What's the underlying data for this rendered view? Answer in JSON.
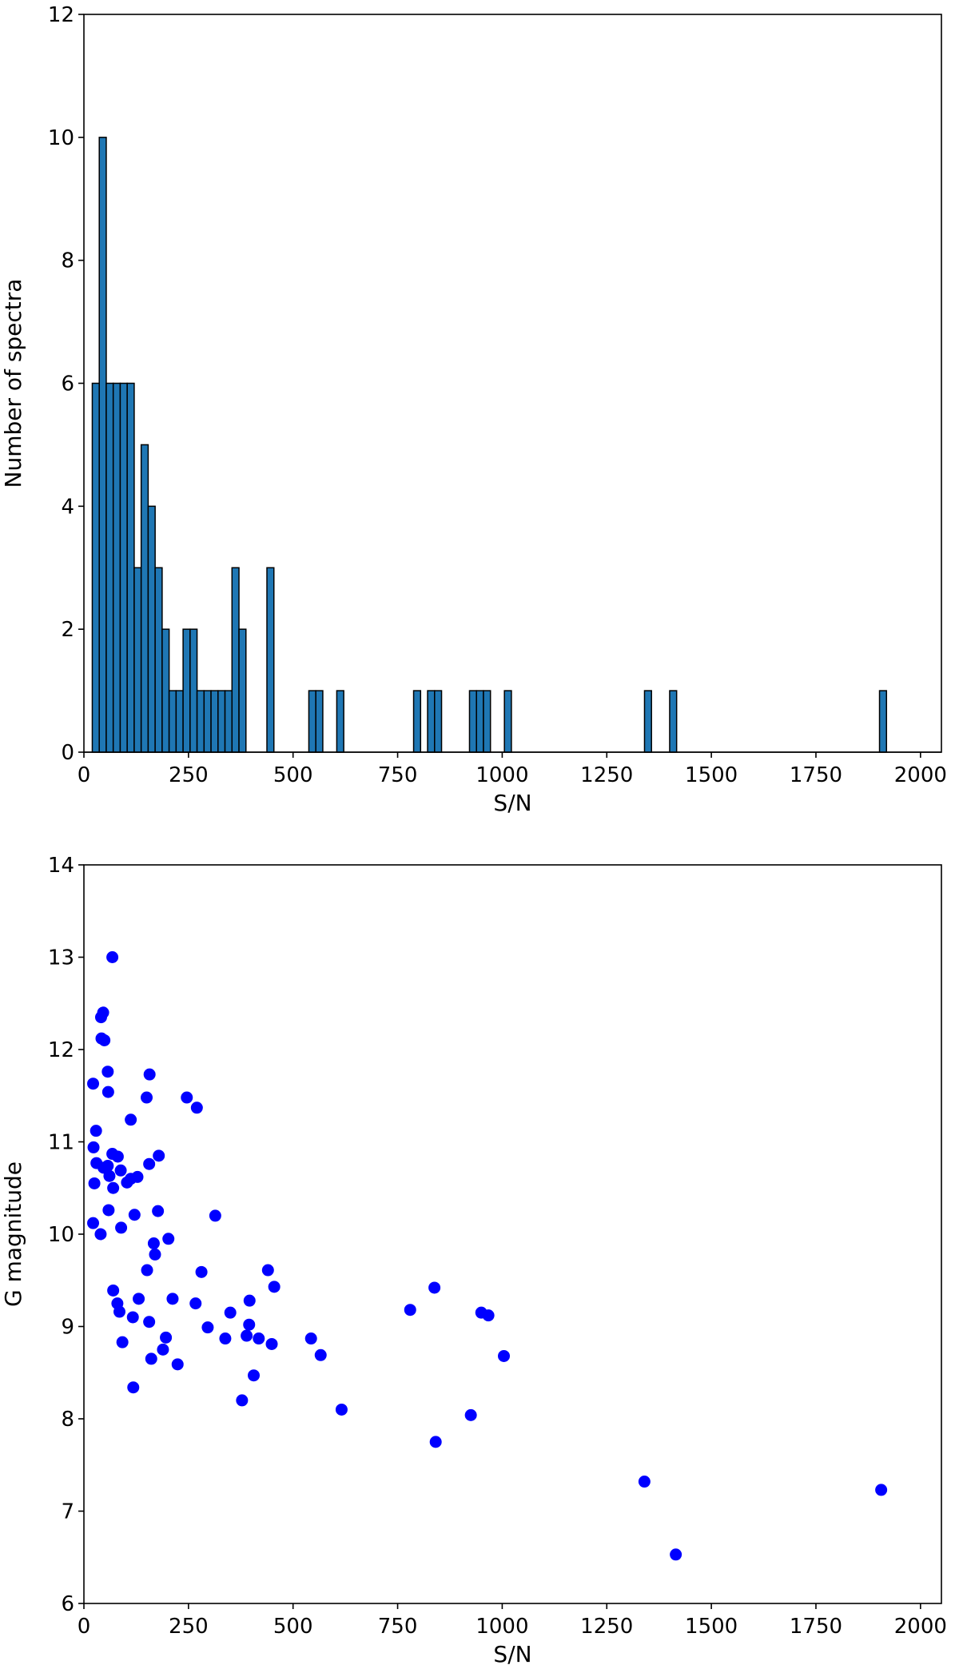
{
  "chart_data": [
    {
      "type": "bar",
      "title": "",
      "xlabel": "S/N",
      "ylabel": "Number of spectra",
      "xlim": [
        0,
        2050
      ],
      "ylim": [
        0,
        12
      ],
      "xticks": [
        0,
        250,
        500,
        750,
        1000,
        1250,
        1500,
        1750,
        2000
      ],
      "yticks": [
        0,
        2,
        4,
        6,
        8,
        10,
        12
      ],
      "bin_width": 16.7,
      "grid": false,
      "bar_color": "#1f77b4",
      "edge_color": "#000000",
      "bins": [
        {
          "x": 20,
          "value": 6
        },
        {
          "x": 36.7,
          "value": 10
        },
        {
          "x": 53.4,
          "value": 6
        },
        {
          "x": 70.1,
          "value": 6
        },
        {
          "x": 86.8,
          "value": 6
        },
        {
          "x": 103.5,
          "value": 6
        },
        {
          "x": 120.2,
          "value": 3
        },
        {
          "x": 136.9,
          "value": 5
        },
        {
          "x": 153.6,
          "value": 4
        },
        {
          "x": 170.3,
          "value": 3
        },
        {
          "x": 187,
          "value": 2
        },
        {
          "x": 203.7,
          "value": 1
        },
        {
          "x": 220.4,
          "value": 1
        },
        {
          "x": 237.1,
          "value": 2
        },
        {
          "x": 253.8,
          "value": 2
        },
        {
          "x": 270.5,
          "value": 1
        },
        {
          "x": 287.2,
          "value": 1
        },
        {
          "x": 303.9,
          "value": 1
        },
        {
          "x": 320.6,
          "value": 1
        },
        {
          "x": 337.3,
          "value": 1
        },
        {
          "x": 354,
          "value": 3
        },
        {
          "x": 370.7,
          "value": 2
        },
        {
          "x": 437.5,
          "value": 3
        },
        {
          "x": 537.7,
          "value": 1
        },
        {
          "x": 554.4,
          "value": 1
        },
        {
          "x": 604.5,
          "value": 1
        },
        {
          "x": 788.2,
          "value": 1
        },
        {
          "x": 821.6,
          "value": 1
        },
        {
          "x": 838.3,
          "value": 1
        },
        {
          "x": 921.8,
          "value": 1
        },
        {
          "x": 938.5,
          "value": 1
        },
        {
          "x": 955.2,
          "value": 1
        },
        {
          "x": 1005.3,
          "value": 1
        },
        {
          "x": 1340.2,
          "value": 1
        },
        {
          "x": 1400.3,
          "value": 1
        },
        {
          "x": 1902,
          "value": 1
        }
      ]
    },
    {
      "type": "scatter",
      "title": "",
      "xlabel": "S/N",
      "ylabel": "G magnitude",
      "xlim": [
        0,
        2050
      ],
      "ylim": [
        6,
        14
      ],
      "xticks": [
        0,
        250,
        500,
        750,
        1000,
        1250,
        1500,
        1750,
        2000
      ],
      "yticks": [
        6,
        7,
        8,
        9,
        10,
        11,
        12,
        13,
        14
      ],
      "grid": false,
      "marker_color": "#0000ff",
      "points": [
        [
          68,
          13.0
        ],
        [
          46,
          12.4
        ],
        [
          41,
          12.35
        ],
        [
          42,
          12.12
        ],
        [
          49,
          12.1
        ],
        [
          57,
          11.76
        ],
        [
          157,
          11.73
        ],
        [
          22,
          11.63
        ],
        [
          58,
          11.54
        ],
        [
          150,
          11.48
        ],
        [
          246,
          11.48
        ],
        [
          270,
          11.37
        ],
        [
          112,
          11.24
        ],
        [
          29,
          11.12
        ],
        [
          23,
          10.94
        ],
        [
          68,
          10.87
        ],
        [
          81,
          10.84
        ],
        [
          179,
          10.85
        ],
        [
          30,
          10.77
        ],
        [
          47,
          10.72
        ],
        [
          57,
          10.74
        ],
        [
          156,
          10.76
        ],
        [
          88,
          10.69
        ],
        [
          61,
          10.63
        ],
        [
          128,
          10.62
        ],
        [
          112,
          10.6
        ],
        [
          103,
          10.56
        ],
        [
          25,
          10.55
        ],
        [
          70,
          10.5
        ],
        [
          59,
          10.26
        ],
        [
          121,
          10.21
        ],
        [
          177,
          10.25
        ],
        [
          314,
          10.2
        ],
        [
          22,
          10.12
        ],
        [
          89,
          10.07
        ],
        [
          40,
          10.0
        ],
        [
          202,
          9.95
        ],
        [
          167,
          9.9
        ],
        [
          170,
          9.78
        ],
        [
          151,
          9.61
        ],
        [
          281,
          9.59
        ],
        [
          440,
          9.61
        ],
        [
          838,
          9.42
        ],
        [
          455,
          9.43
        ],
        [
          70,
          9.39
        ],
        [
          131,
          9.3
        ],
        [
          212,
          9.3
        ],
        [
          396,
          9.28
        ],
        [
          267,
          9.25
        ],
        [
          80,
          9.25
        ],
        [
          85,
          9.16
        ],
        [
          350,
          9.15
        ],
        [
          780,
          9.18
        ],
        [
          950,
          9.15
        ],
        [
          967,
          9.12
        ],
        [
          117,
          9.1
        ],
        [
          156,
          9.05
        ],
        [
          395,
          9.02
        ],
        [
          296,
          8.99
        ],
        [
          338,
          8.87
        ],
        [
          389,
          8.9
        ],
        [
          418,
          8.87
        ],
        [
          543,
          8.87
        ],
        [
          196,
          8.88
        ],
        [
          92,
          8.83
        ],
        [
          449,
          8.81
        ],
        [
          189,
          8.75
        ],
        [
          566,
          8.69
        ],
        [
          1004,
          8.68
        ],
        [
          161,
          8.65
        ],
        [
          224,
          8.59
        ],
        [
          406,
          8.47
        ],
        [
          118,
          8.34
        ],
        [
          378,
          8.2
        ],
        [
          616,
          8.1
        ],
        [
          925,
          8.04
        ],
        [
          841,
          7.75
        ],
        [
          1340,
          7.32
        ],
        [
          1906,
          7.23
        ],
        [
          1415,
          6.53
        ]
      ]
    }
  ]
}
